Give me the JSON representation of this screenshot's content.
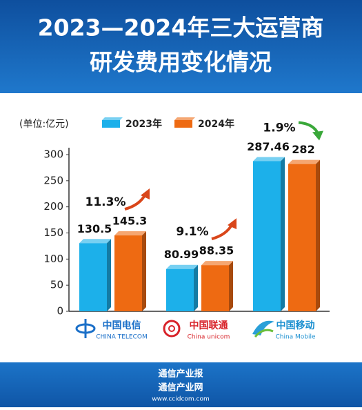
{
  "chart_data": {
    "type": "bar",
    "title": [
      "2023—2024年三大运营商",
      "研发费用变化情况"
    ],
    "unit_label": "(单位:亿元)",
    "categories": [
      "中国电信",
      "中国联通",
      "中国移动"
    ],
    "category_sublabels": [
      "CHINA TELECOM",
      "China unicom",
      "China Mobile"
    ],
    "series": [
      {
        "name": "2023年",
        "color": "#1cb0ea",
        "values": [
          130.5,
          80.99,
          287.46
        ]
      },
      {
        "name": "2024年",
        "color": "#ee6a12",
        "values": [
          145.3,
          88.35,
          282
        ]
      }
    ],
    "annotations": [
      {
        "text": "11.3%",
        "direction": "up"
      },
      {
        "text": "9.1%",
        "direction": "up"
      },
      {
        "text": "1.9%",
        "direction": "down"
      }
    ],
    "ylim": [
      0,
      300
    ],
    "yticks": [
      0,
      50,
      100,
      150,
      200,
      250,
      300
    ],
    "grid": false,
    "footer": [
      "通信产业报",
      "通信产业网",
      "www.ccidcom.com"
    ]
  }
}
